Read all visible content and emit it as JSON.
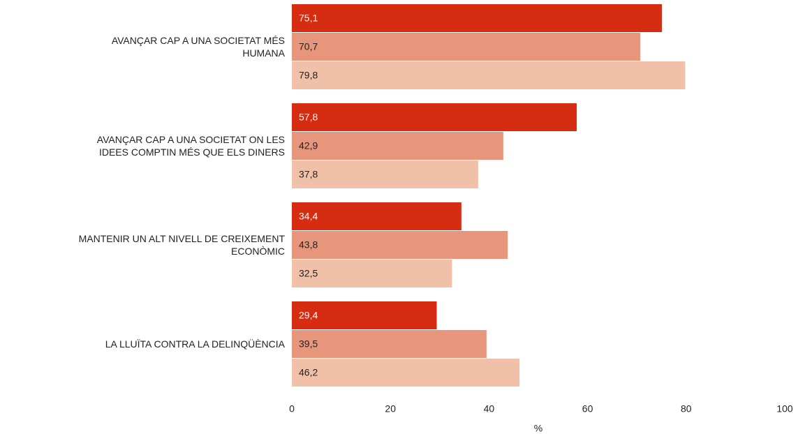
{
  "chart_data": {
    "type": "bar",
    "orientation": "horizontal",
    "categories": [
      "AVANÇAR CAP A UNA SOCIETAT MÉS\nHUMANA",
      "AVANÇAR CAP A UNA SOCIETAT ON LES\nIDEES COMPTIN MÉS QUE ELS DINERS",
      "MANTENIR UN ALT NIVELL DE CREIXEMENT\nECONÒMIC",
      "LA LLUÏTA CONTRA LA DELINQÜÈNCIA"
    ],
    "series": [
      {
        "color": "#d62d12",
        "label_color": "#ffffff",
        "values": [
          75.1,
          57.8,
          34.4,
          29.4
        ],
        "value_labels": [
          "75,1",
          "57,8",
          "34,4",
          "29,4"
        ]
      },
      {
        "color": "#e8967b",
        "label_color": "#222222",
        "values": [
          70.7,
          42.9,
          43.8,
          39.5
        ],
        "value_labels": [
          "70,7",
          "42,9",
          "43,8",
          "39,5"
        ]
      },
      {
        "color": "#f0c0a8",
        "label_color": "#222222",
        "values": [
          79.8,
          37.8,
          32.5,
          46.2
        ],
        "value_labels": [
          "79,8",
          "37,8",
          "32,5",
          "46,2"
        ]
      }
    ],
    "xlim": [
      0,
      100
    ],
    "xticks": [
      0,
      20,
      40,
      60,
      80,
      100
    ],
    "x_label": "%",
    "grid": false
  }
}
